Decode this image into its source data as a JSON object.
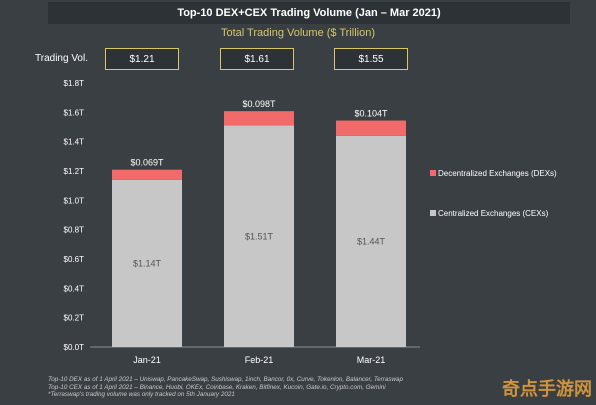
{
  "header": {
    "title": "Top-10 DEX+CEX Trading Volume (Jan – Mar 2021)",
    "subtitle": "Total Trading Volume ($ Trillion)",
    "row_label": "Trading Vol."
  },
  "totals": [
    "$1.21",
    "$1.61",
    "$1.55"
  ],
  "colors": {
    "dex": "#f26a6a",
    "cex": "#c7c7c7",
    "background": "#3a3f44",
    "accent": "#d7c76a"
  },
  "chart_data": {
    "type": "bar",
    "stacked": true,
    "categories": [
      "Jan-21",
      "Feb-21",
      "Mar-21"
    ],
    "series": [
      {
        "name": "Centralized Exchanges (CEXs)",
        "values": [
          1.14,
          1.51,
          1.44
        ],
        "labels": [
          "$1.14T",
          "$1.51T",
          "$1.44T"
        ]
      },
      {
        "name": "Decentralized Exchanges (DEXs)",
        "values": [
          0.069,
          0.098,
          0.104
        ],
        "labels": [
          "$0.069T",
          "$0.098T",
          "$0.104T"
        ]
      }
    ],
    "ylim": [
      0,
      1.8
    ],
    "yticks": [
      0,
      0.2,
      0.4,
      0.6,
      0.8,
      1.0,
      1.2,
      1.4,
      1.6,
      1.8
    ],
    "ytick_labels": [
      "$0.0T",
      "$0.2T",
      "$0.4T",
      "$0.6T",
      "$0.8T",
      "$1.0T",
      "$1.2T",
      "$1.4T",
      "$1.6T",
      "$1.8T"
    ],
    "legend_position": "right",
    "grid": false
  },
  "footnotes": [
    "Top-10 DEX as of 1 April 2021 – Uniswap, PancakeSwap, Sushiswap, 1inch, Bancor, 0x, Curve, Tokenlon, Balancer, Terraswap",
    "Top-10 CEX as of 1 April 2021 – Binance, Huobi, OKEx, Coinbase, Kraken, Bitfinex, Kucoin, Gate.io, Crypto.com, Gemini",
    "*Terraswap's trading volume was only tracked on 5th January 2021"
  ],
  "watermark": "奇点手游网"
}
